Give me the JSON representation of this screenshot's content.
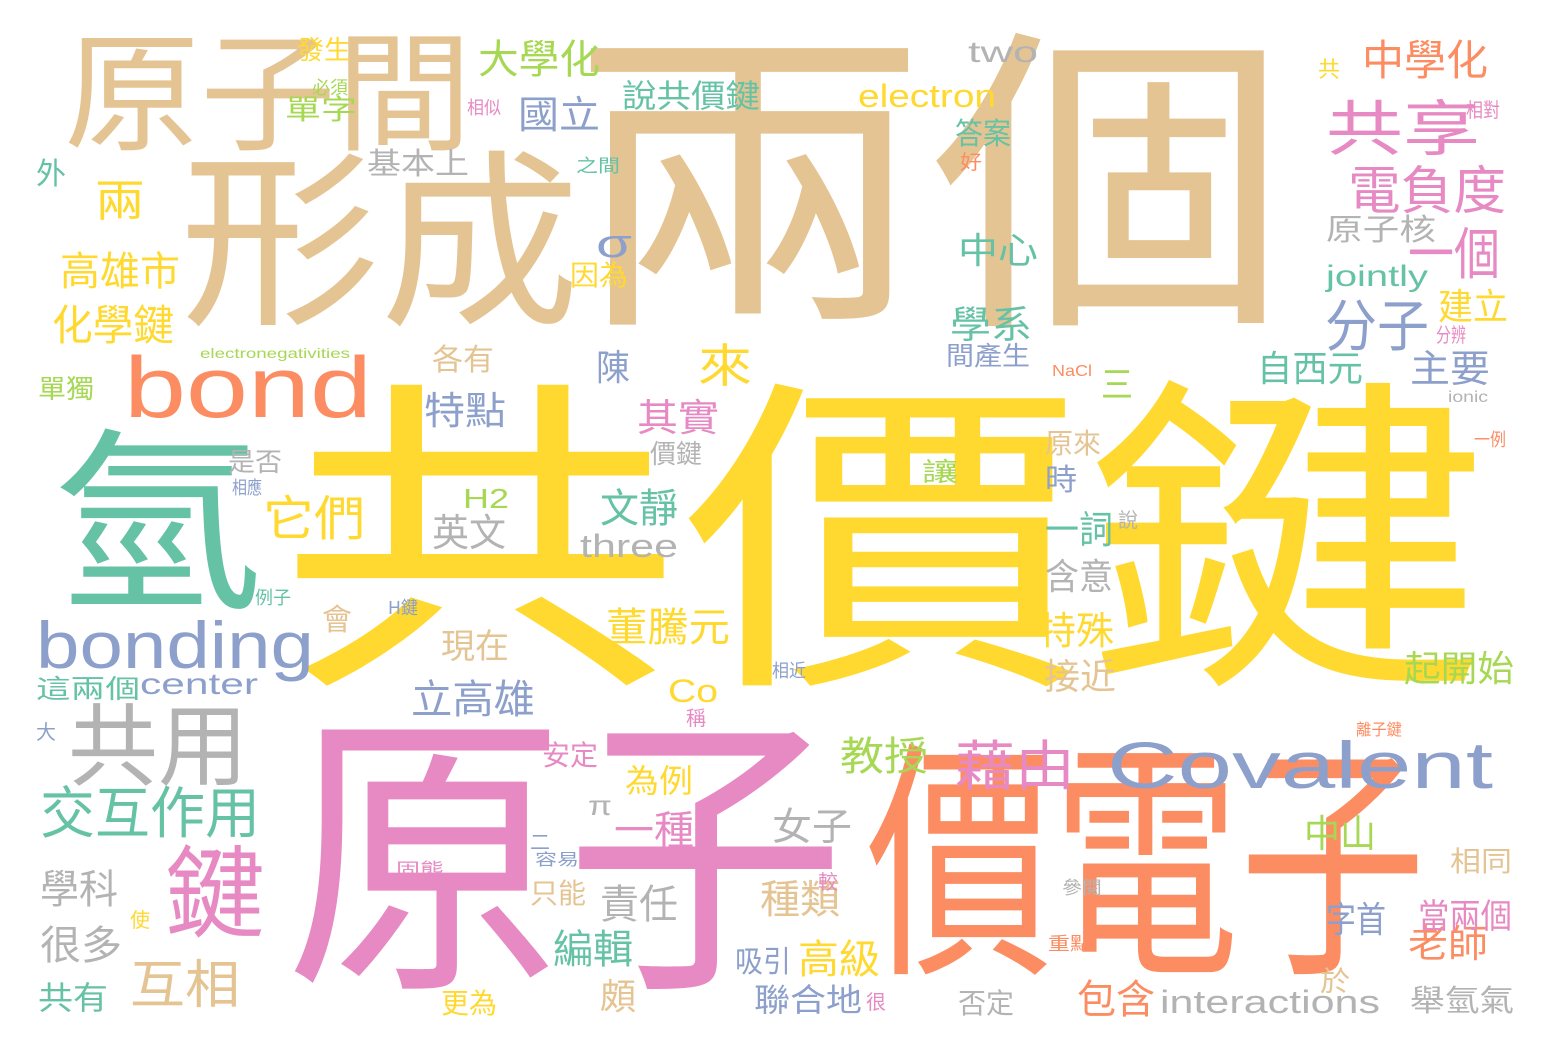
{
  "palette": {
    "tan": "#e5c494",
    "yellow": "#ffd92f",
    "pink": "#e78ac3",
    "orange": "#fc8d62",
    "green": "#66c2a5",
    "blue": "#8da0cb",
    "lime": "#a6d854",
    "gray": "#b3b3b3"
  },
  "words": [
    {
      "text": "兩個",
      "color": "tan"
    },
    {
      "text": "共價鍵",
      "color": "yellow"
    },
    {
      "text": "原子",
      "color": "pink"
    },
    {
      "text": "價電子",
      "color": "orange"
    },
    {
      "text": "形成",
      "color": "tan"
    },
    {
      "text": "氫",
      "color": "green"
    },
    {
      "text": "原子間",
      "color": "tan"
    },
    {
      "text": "bond",
      "color": "orange"
    },
    {
      "text": "bonding",
      "color": "blue"
    },
    {
      "text": "Covalent",
      "color": "blue"
    },
    {
      "text": "鍵",
      "color": "pink"
    },
    {
      "text": "共用",
      "color": "gray"
    },
    {
      "text": "共享",
      "color": "pink"
    },
    {
      "text": "交互作用",
      "color": "green"
    },
    {
      "text": "互相",
      "color": "tan"
    },
    {
      "text": "藉由",
      "color": "pink"
    },
    {
      "text": "電負度",
      "color": "pink"
    },
    {
      "text": "一個",
      "color": "pink"
    },
    {
      "text": "分子",
      "color": "blue"
    },
    {
      "text": "大學化",
      "color": "lime"
    },
    {
      "text": "中學化",
      "color": "orange"
    },
    {
      "text": "兩",
      "color": "yellow"
    },
    {
      "text": "σ",
      "color": "blue"
    },
    {
      "text": "高雄市",
      "color": "yellow"
    },
    {
      "text": "化學鍵",
      "color": "yellow"
    },
    {
      "text": "它們",
      "color": "yellow"
    },
    {
      "text": "來",
      "color": "yellow"
    },
    {
      "text": "two",
      "color": "gray"
    },
    {
      "text": "electron",
      "color": "yellow"
    },
    {
      "text": "國立",
      "color": "blue"
    },
    {
      "text": "說共價鍵",
      "color": "green"
    },
    {
      "text": "單字",
      "color": "lime"
    },
    {
      "text": "中心",
      "color": "green"
    },
    {
      "text": "jointly",
      "color": "green"
    },
    {
      "text": "學系",
      "color": "green"
    },
    {
      "text": "原子核",
      "color": "gray"
    },
    {
      "text": "建立",
      "color": "yellow"
    },
    {
      "text": "自西元",
      "color": "green"
    },
    {
      "text": "主要",
      "color": "blue"
    },
    {
      "text": "陳",
      "color": "blue"
    },
    {
      "text": "特點",
      "color": "blue"
    },
    {
      "text": "其實",
      "color": "pink"
    },
    {
      "text": "文靜",
      "color": "green"
    },
    {
      "text": "三",
      "color": "lime"
    },
    {
      "text": "一詞",
      "color": "green"
    },
    {
      "text": "含意",
      "color": "gray"
    },
    {
      "text": "特殊",
      "color": "yellow"
    },
    {
      "text": "接近",
      "color": "tan"
    },
    {
      "text": "起開始",
      "color": "lime"
    },
    {
      "text": "英文",
      "color": "gray"
    },
    {
      "text": "three",
      "color": "gray"
    },
    {
      "text": "H2",
      "color": "lime"
    },
    {
      "text": "現在",
      "color": "tan"
    },
    {
      "text": "董騰元",
      "color": "yellow"
    },
    {
      "text": "立高雄",
      "color": "blue"
    },
    {
      "text": "center",
      "color": "blue"
    },
    {
      "text": "Co",
      "color": "yellow"
    },
    {
      "text": "教授",
      "color": "lime"
    },
    {
      "text": "為例",
      "color": "yellow"
    },
    {
      "text": "一種",
      "color": "pink"
    },
    {
      "text": "π",
      "color": "gray"
    },
    {
      "text": "女子",
      "color": "gray"
    },
    {
      "text": "中山",
      "color": "lime"
    },
    {
      "text": "學科",
      "color": "gray"
    },
    {
      "text": "很多",
      "color": "gray"
    },
    {
      "text": "共有",
      "color": "green"
    },
    {
      "text": "責任",
      "color": "gray"
    },
    {
      "text": "種類",
      "color": "tan"
    },
    {
      "text": "編輯",
      "color": "green"
    },
    {
      "text": "高級",
      "color": "yellow"
    },
    {
      "text": "吸引",
      "color": "blue"
    },
    {
      "text": "聯合地",
      "color": "blue"
    },
    {
      "text": "包含",
      "color": "orange"
    },
    {
      "text": "interactions",
      "color": "gray"
    },
    {
      "text": "老師",
      "color": "orange"
    },
    {
      "text": "字首",
      "color": "blue"
    },
    {
      "text": "當兩個",
      "color": "pink"
    },
    {
      "text": "舉氫氣",
      "color": "gray"
    },
    {
      "text": "安定",
      "color": "pink"
    },
    {
      "text": "只能",
      "color": "tan"
    },
    {
      "text": "更為",
      "color": "yellow"
    },
    {
      "text": "否定",
      "color": "gray"
    },
    {
      "text": "頗",
      "color": "tan"
    },
    {
      "text": "相同",
      "color": "tan"
    },
    {
      "text": "於",
      "color": "tan"
    },
    {
      "text": "發生",
      "color": "yellow"
    },
    {
      "text": "必須",
      "color": "lime"
    },
    {
      "text": "相似",
      "color": "pink"
    },
    {
      "text": "答案",
      "color": "green"
    },
    {
      "text": "基本上",
      "color": "gray"
    },
    {
      "text": "之間",
      "color": "green"
    },
    {
      "text": "好",
      "color": "orange"
    },
    {
      "text": "外",
      "color": "green"
    },
    {
      "text": "共",
      "color": "yellow"
    },
    {
      "text": "相對",
      "color": "pink"
    },
    {
      "text": "因為",
      "color": "yellow"
    },
    {
      "text": "各有",
      "color": "tan"
    },
    {
      "text": "間產生",
      "color": "blue"
    },
    {
      "text": "分辨",
      "color": "pink"
    },
    {
      "text": "electronegativities",
      "color": "lime"
    },
    {
      "text": "NaCl",
      "color": "orange"
    },
    {
      "text": "ionic",
      "color": "gray"
    },
    {
      "text": "單獨",
      "color": "lime"
    },
    {
      "text": "是否",
      "color": "gray"
    },
    {
      "text": "相應",
      "color": "blue"
    },
    {
      "text": "價鍵",
      "color": "gray"
    },
    {
      "text": "讓",
      "color": "lime"
    },
    {
      "text": "時",
      "color": "blue"
    },
    {
      "text": "原來",
      "color": "tan"
    },
    {
      "text": "一例",
      "color": "orange"
    },
    {
      "text": "說",
      "color": "gray"
    },
    {
      "text": "例子",
      "color": "green"
    },
    {
      "text": "H鍵",
      "color": "blue"
    },
    {
      "text": "會",
      "color": "tan"
    },
    {
      "text": "相近",
      "color": "blue"
    },
    {
      "text": "這兩個",
      "color": "green"
    },
    {
      "text": "大",
      "color": "blue"
    },
    {
      "text": "離子鍵",
      "color": "orange"
    },
    {
      "text": "稱",
      "color": "pink"
    },
    {
      "text": "二",
      "color": "blue"
    },
    {
      "text": "容易",
      "color": "blue"
    },
    {
      "text": "較",
      "color": "pink"
    },
    {
      "text": "固態",
      "color": "pink"
    },
    {
      "text": "使",
      "color": "yellow"
    },
    {
      "text": "參閱",
      "color": "gray"
    },
    {
      "text": "重點",
      "color": "orange"
    },
    {
      "text": "很",
      "color": "pink"
    }
  ]
}
